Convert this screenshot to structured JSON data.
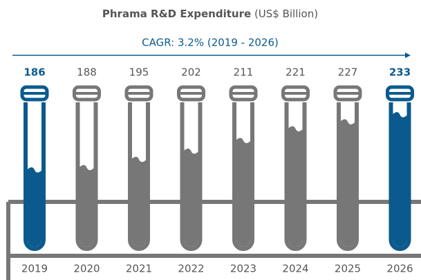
{
  "chart_data": {
    "type": "test-tube",
    "title": "Phrama R&D Expenditure",
    "subtitle": "(US$ Billion)",
    "annotation": "CAGR: 3.2% (2019 - 2026)",
    "categories": [
      "2019",
      "2020",
      "2021",
      "2022",
      "2023",
      "2024",
      "2025",
      "2026"
    ],
    "values": [
      186,
      188,
      195,
      202,
      211,
      221,
      227,
      233
    ],
    "colors": [
      "#0b5a8e",
      "#777777",
      "#777777",
      "#777777",
      "#777777",
      "#777777",
      "#777777",
      "#0b5a8e"
    ]
  }
}
